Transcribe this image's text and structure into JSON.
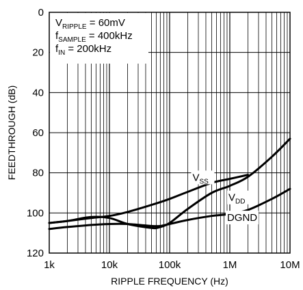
{
  "chart_data": {
    "type": "line",
    "title": "",
    "xlabel": "RIPPLE FREQUENCY (Hz)",
    "ylabel": "FEEDTHROUGH (dB)",
    "x_scale": "log",
    "xlim": [
      1000,
      10000000
    ],
    "ylim": [
      0,
      120
    ],
    "y_inverted": true,
    "grid": true,
    "x_ticks": [
      {
        "value": 1000,
        "label": "1k"
      },
      {
        "value": 10000,
        "label": "10k"
      },
      {
        "value": 100000,
        "label": "100k"
      },
      {
        "value": 1000000,
        "label": "1M"
      },
      {
        "value": 10000000,
        "label": "10M"
      }
    ],
    "y_ticks": [
      {
        "value": 0,
        "label": "0"
      },
      {
        "value": 20,
        "label": "20"
      },
      {
        "value": 40,
        "label": "40"
      },
      {
        "value": 60,
        "label": "60"
      },
      {
        "value": 80,
        "label": "80"
      },
      {
        "value": 100,
        "label": "100"
      },
      {
        "value": 120,
        "label": "120"
      }
    ],
    "conditions": [
      {
        "main": "V",
        "sub": "RIPPLE",
        "rest": " = 60mV"
      },
      {
        "main": "f",
        "sub": "SAMPLE",
        "rest": " = 400kHz"
      },
      {
        "main": "f",
        "sub": "IN",
        "rest": " = 200kHz"
      }
    ],
    "series": [
      {
        "name": "VSS",
        "label_main": "V",
        "label_sub": "SS",
        "x": [
          1000,
          2000,
          5000,
          10000,
          20000,
          50000,
          100000,
          200000,
          500000,
          1000000,
          2000000
        ],
        "y": [
          105,
          104,
          102.5,
          101.5,
          99.5,
          96,
          93,
          89.5,
          85,
          83,
          81
        ]
      },
      {
        "name": "VDD",
        "label_main": "V",
        "label_sub": "DD",
        "x": [
          1000,
          2000,
          5000,
          10000,
          20000,
          50000,
          70000,
          100000,
          200000,
          500000,
          1000000,
          2000000,
          5000000,
          10000000
        ],
        "y": [
          105,
          104,
          102,
          102.5,
          105.5,
          107.5,
          107,
          105,
          98,
          90,
          86.5,
          82,
          72,
          63
        ]
      },
      {
        "name": "DGND",
        "label_main": "DGND",
        "label_sub": "",
        "x": [
          1000,
          2000,
          5000,
          10000,
          20000,
          50000,
          70000,
          100000,
          200000,
          500000,
          1000000,
          2000000,
          5000000,
          10000000
        ],
        "y": [
          108,
          107,
          106,
          105.5,
          105.5,
          106.5,
          106.5,
          105.5,
          103.5,
          101.5,
          100.5,
          98.5,
          93,
          88
        ]
      }
    ]
  }
}
